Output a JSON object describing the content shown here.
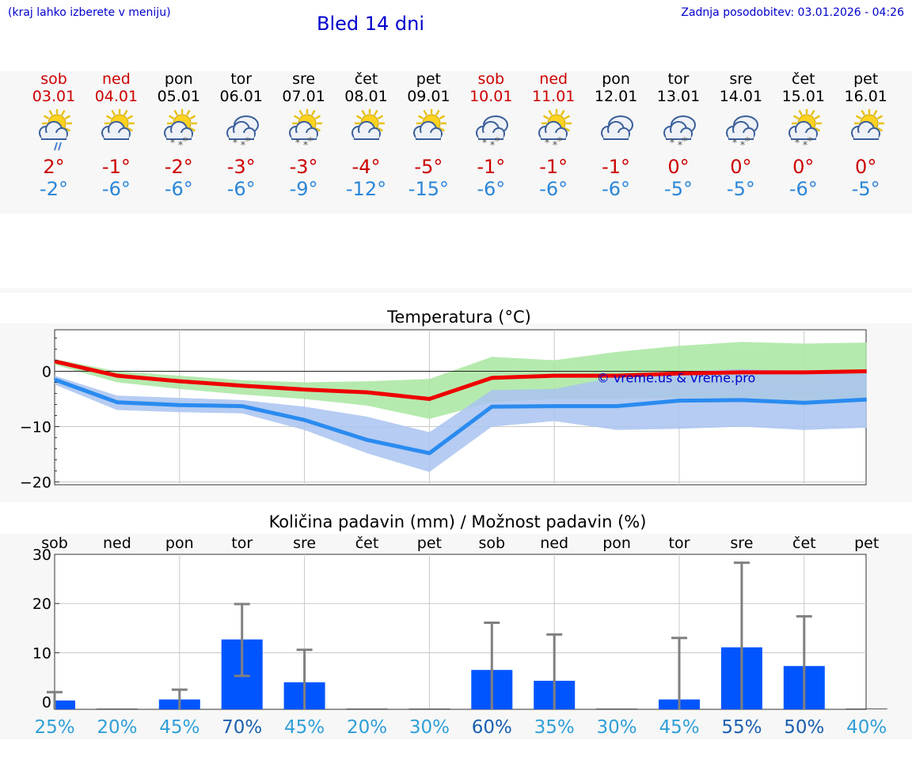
{
  "header": {
    "left_note": "(kraj lahko izberete v meniju)",
    "title": "Bled 14 dni",
    "updated": "Zadnja posodobitev: 03.01.2026 - 04:26"
  },
  "colors": {
    "title_blue": "#0000cc",
    "max_red": "#cc0000",
    "min_blue": "#2a86d8",
    "bar_blue": "#0055ff",
    "band_green": "#a8e6a0",
    "band_blue": "#a9c3f0"
  },
  "days": [
    {
      "name": "sob",
      "date": "03.01",
      "weekend": true,
      "icon": "sun-cloud-rain-icon",
      "max": "2°",
      "min": "-2°"
    },
    {
      "name": "ned",
      "date": "04.01",
      "weekend": true,
      "icon": "sun-cloud-icon",
      "max": "-1°",
      "min": "-6°"
    },
    {
      "name": "pon",
      "date": "05.01",
      "weekend": false,
      "icon": "sun-cloud-snow-icon",
      "max": "-2°",
      "min": "-6°"
    },
    {
      "name": "tor",
      "date": "06.01",
      "weekend": false,
      "icon": "clouds-snow-icon",
      "max": "-3°",
      "min": "-6°"
    },
    {
      "name": "sre",
      "date": "07.01",
      "weekend": false,
      "icon": "sun-cloud-snow-icon",
      "max": "-3°",
      "min": "-9°"
    },
    {
      "name": "čet",
      "date": "08.01",
      "weekend": false,
      "icon": "sun-cloud-icon",
      "max": "-4°",
      "min": "-12°"
    },
    {
      "name": "pet",
      "date": "09.01",
      "weekend": false,
      "icon": "sun-cloud-icon",
      "max": "-5°",
      "min": "-15°"
    },
    {
      "name": "sob",
      "date": "10.01",
      "weekend": true,
      "icon": "clouds-snow-icon",
      "max": "-1°",
      "min": "-6°"
    },
    {
      "name": "ned",
      "date": "11.01",
      "weekend": true,
      "icon": "sun-cloud-snow-icon",
      "max": "-1°",
      "min": "-6°"
    },
    {
      "name": "pon",
      "date": "12.01",
      "weekend": false,
      "icon": "clouds-icon",
      "max": "-1°",
      "min": "-6°"
    },
    {
      "name": "tor",
      "date": "13.01",
      "weekend": false,
      "icon": "clouds-snow-icon",
      "max": "0°",
      "min": "-5°"
    },
    {
      "name": "sre",
      "date": "14.01",
      "weekend": false,
      "icon": "clouds-snow-icon",
      "max": "0°",
      "min": "-5°"
    },
    {
      "name": "čet",
      "date": "15.01",
      "weekend": false,
      "icon": "sun-cloud-snow-icon",
      "max": "0°",
      "min": "-6°"
    },
    {
      "name": "pet",
      "date": "16.01",
      "weekend": false,
      "icon": "sun-cloud-icon",
      "max": "0°",
      "min": "-5°"
    }
  ],
  "chart_data": [
    {
      "type": "line",
      "title": "Temperatura (°C)",
      "x": [
        "03.01",
        "04.01",
        "05.01",
        "06.01",
        "07.01",
        "08.01",
        "09.01",
        "10.01",
        "11.01",
        "12.01",
        "13.01",
        "14.01",
        "15.01",
        "16.01"
      ],
      "ylim": [
        -20.5,
        7.5
      ],
      "yticks": [
        0,
        -10,
        -20
      ],
      "ytick_labels": [
        "0",
        "−10",
        "−20"
      ],
      "watermark": "© vreme.us & vreme.pro",
      "series": [
        {
          "name": "max",
          "color": "#ee0000",
          "values": [
            1.8,
            -0.8,
            -1.8,
            -2.6,
            -3.3,
            -3.8,
            -5.0,
            -1.2,
            -0.8,
            -0.8,
            -0.4,
            -0.2,
            -0.2,
            0.0
          ]
        },
        {
          "name": "min",
          "color": "#2a8bf0",
          "values": [
            -1.5,
            -5.6,
            -6.1,
            -6.3,
            -8.8,
            -12.4,
            -14.8,
            -6.4,
            -6.3,
            -6.3,
            -5.3,
            -5.2,
            -5.7,
            -5.1
          ]
        }
      ],
      "bands": [
        {
          "name": "max-range",
          "color": "#a8e6a0",
          "upper": [
            2.2,
            0.0,
            -0.8,
            -1.6,
            -2.0,
            -1.8,
            -1.4,
            2.6,
            2.0,
            3.5,
            4.6,
            5.3,
            5.0,
            5.2
          ],
          "lower": [
            1.2,
            -2.0,
            -3.2,
            -4.2,
            -5.0,
            -6.2,
            -8.6,
            -5.6,
            -5.0,
            -5.0,
            -4.8,
            -4.8,
            -5.4,
            -5.0
          ]
        },
        {
          "name": "min-range",
          "color": "#a9c3f0",
          "upper": [
            -0.8,
            -4.4,
            -4.8,
            -5.2,
            -6.4,
            -8.2,
            -11.0,
            -3.4,
            -3.2,
            -1.0,
            0.0,
            0.4,
            0.0,
            0.2
          ],
          "lower": [
            -2.4,
            -7.0,
            -7.4,
            -7.6,
            -10.6,
            -14.8,
            -18.2,
            -10.0,
            -9.0,
            -10.6,
            -10.4,
            -10.0,
            -10.6,
            -10.2
          ]
        }
      ]
    },
    {
      "type": "bar",
      "title": "Količina padavin (mm) / Možnost padavin (%)",
      "categories": [
        "sob",
        "ned",
        "pon",
        "tor",
        "sre",
        "čet",
        "pet",
        "sob",
        "ned",
        "pon",
        "tor",
        "sre",
        "čet",
        "pet"
      ],
      "values": [
        0.3,
        0,
        0.5,
        12.7,
        4.0,
        0,
        0,
        6.5,
        4.3,
        0,
        0.5,
        11.1,
        7.3,
        0
      ],
      "error_high": [
        2.0,
        0,
        2.5,
        19.9,
        10.6,
        0,
        0,
        16.1,
        13.7,
        0,
        13.0,
        28.3,
        17.4,
        0
      ],
      "error_low": [
        0,
        0,
        0,
        5.3,
        0,
        0,
        0,
        0,
        0,
        0,
        0,
        0,
        0,
        0
      ],
      "ylim": [
        -1.5,
        30
      ],
      "yticks": [
        0,
        10,
        20,
        30
      ],
      "probabilities": [
        "25%",
        "20%",
        "45%",
        "70%",
        "45%",
        "20%",
        "30%",
        "60%",
        "35%",
        "30%",
        "45%",
        "55%",
        "50%",
        "40%"
      ],
      "probability_colors": [
        "#2f9fd8",
        "#2f9fd8",
        "#2f9fd8",
        "#1a5fb0",
        "#2f9fd8",
        "#2f9fd8",
        "#2f9fd8",
        "#1a5fb0",
        "#2f9fd8",
        "#2f9fd8",
        "#2f9fd8",
        "#1a5fb0",
        "#1a5fb0",
        "#2f9fd8"
      ]
    }
  ]
}
